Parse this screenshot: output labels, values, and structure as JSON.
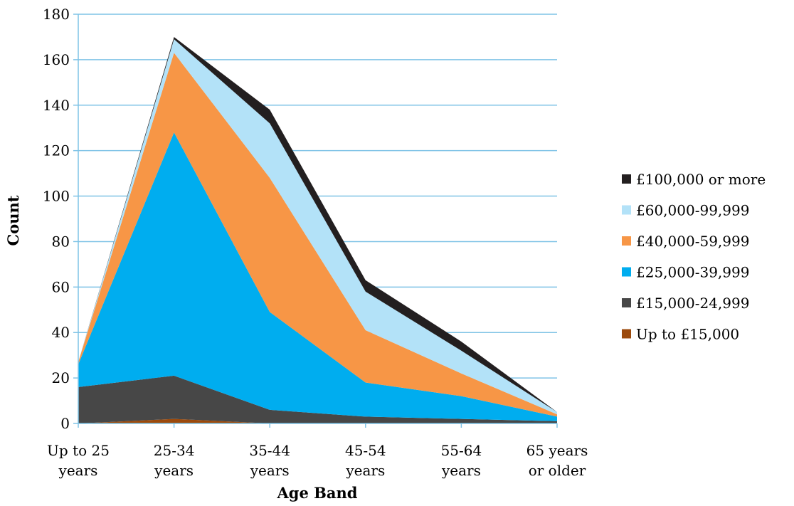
{
  "chart_data": {
    "type": "area",
    "stacked": true,
    "title": "",
    "xlabel": "Age Band",
    "ylabel": "Count",
    "ylim": [
      0,
      180
    ],
    "yticks": [
      0,
      20,
      40,
      60,
      80,
      100,
      120,
      140,
      160,
      180
    ],
    "grid": true,
    "legend_position": "right",
    "categories": [
      [
        "Up to 25",
        "years"
      ],
      [
        "25-34",
        "years"
      ],
      [
        "35-44",
        "years"
      ],
      [
        "45-54",
        "years"
      ],
      [
        "55-64",
        "years"
      ],
      [
        "65 years",
        "or older"
      ]
    ],
    "series": [
      {
        "name": "Up to £15,000",
        "color": "#9c4a0c",
        "values": [
          0,
          2,
          0,
          0,
          0,
          0
        ]
      },
      {
        "name": "£15,000-24,999",
        "color": "#474747",
        "values": [
          16,
          19,
          6,
          3,
          2,
          1
        ]
      },
      {
        "name": "£25,000-39,999",
        "color": "#00adef",
        "values": [
          10,
          107,
          43,
          15,
          10,
          2
        ]
      },
      {
        "name": "£40,000-59,999",
        "color": "#f79646",
        "values": [
          1,
          35,
          59,
          23,
          10,
          1
        ]
      },
      {
        "name": "£60,000-99,999",
        "color": "#b3e2f8",
        "values": [
          0,
          6,
          24,
          17,
          10,
          1
        ]
      },
      {
        "name": "£100,000 or more",
        "color": "#231f20",
        "values": [
          0,
          1,
          6,
          5,
          4,
          0
        ]
      }
    ]
  }
}
